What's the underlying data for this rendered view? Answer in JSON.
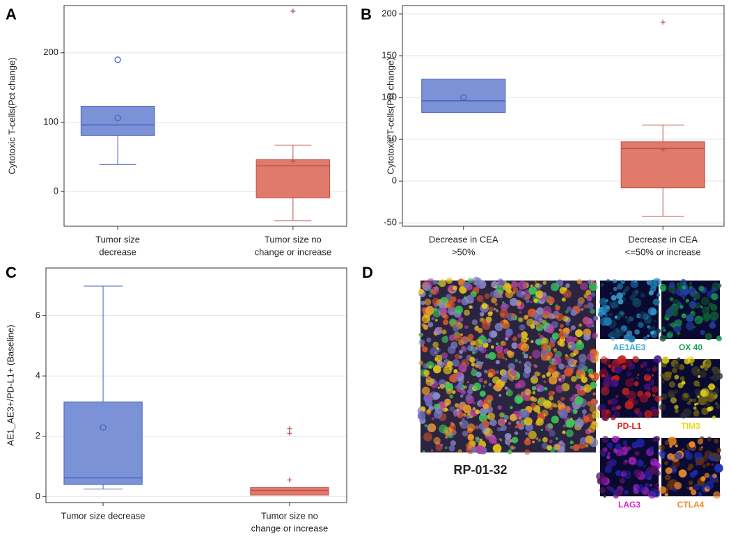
{
  "chart_data": [
    {
      "type": "box",
      "panel_label": "A",
      "ylabel": "Cytotoxic T-cells(Pct change)",
      "categories": [
        [
          "Tumor size",
          "decrease"
        ],
        [
          "Tumor size  no",
          "change or increase"
        ]
      ],
      "ylim": [
        -50,
        268
      ],
      "yticks": [
        0,
        100,
        200
      ],
      "grid": true,
      "boxes": [
        {
          "q1": 81,
          "median": 96,
          "q3": 123,
          "whisker_low": 39,
          "mean": 106,
          "outliers": [
            190
          ],
          "marker": "circle",
          "color": "#7b93d6",
          "edge": "#4a5ec4"
        },
        {
          "q1": -9,
          "median": 37,
          "q3": 46,
          "whisker_low": -42,
          "whisker_high": 67,
          "mean": 44,
          "outliers": [
            260
          ],
          "marker": "plus",
          "color": "#e07a6a",
          "edge": "#c0504d"
        }
      ]
    },
    {
      "type": "box",
      "panel_label": "B",
      "ylabel": "Cytotoxic T-cells(Pct change)",
      "categories": [
        [
          "Decrease in CEA",
          ">50%"
        ],
        [
          "Decrease in CEA",
          "<=50% or increase"
        ]
      ],
      "ylim": [
        -54,
        210
      ],
      "yticks": [
        -50,
        0,
        50,
        100,
        150,
        200
      ],
      "grid": true,
      "boxes": [
        {
          "q1": 82,
          "median": 96,
          "q3": 122,
          "mean": 100,
          "outliers": [],
          "marker": "circle",
          "color": "#7b93d6",
          "edge": "#4a5ec4"
        },
        {
          "q1": -8,
          "median": 39,
          "q3": 47,
          "whisker_low": -42,
          "whisker_high": 67,
          "mean": 38,
          "outliers": [
            190
          ],
          "marker": "plus",
          "color": "#e07a6a",
          "edge": "#c0504d"
        }
      ]
    },
    {
      "type": "box",
      "panel_label": "C",
      "ylabel": "AE1_AE3+/PD-L1+  (Baseline)",
      "categories": [
        [
          "Tumor size decrease"
        ],
        [
          "Tumor size  no",
          "change or increase"
        ]
      ],
      "ylim": [
        -0.2,
        7.58
      ],
      "yticks": [
        0,
        2,
        4,
        6
      ],
      "grid": true,
      "boxes": [
        {
          "q1": 0.4,
          "median": 0.62,
          "q3": 3.14,
          "whisker_low": 0.25,
          "whisker_high": 6.98,
          "mean": 2.29,
          "outliers": [],
          "marker": "circle",
          "color": "#7b93d6",
          "edge": "#4a5ec4"
        },
        {
          "q1": 0.05,
          "median": 0.2,
          "q3": 0.3,
          "outliers": [
            0.55,
            2.1,
            2.25
          ],
          "marker": "plus",
          "color": "#e07a6a",
          "edge": "#c0504d"
        }
      ]
    }
  ],
  "panel_d": {
    "label": "D",
    "sample": "RP-01-32",
    "channels": [
      {
        "name": "AE1AE3",
        "color": "#3aa8dc"
      },
      {
        "name": "OX 40",
        "color": "#19a04f"
      },
      {
        "name": "PD-L1",
        "color": "#e0201c"
      },
      {
        "name": "TIM3",
        "color": "#e8d81a"
      },
      {
        "name": "LAG3",
        "color": "#d428d0"
      },
      {
        "name": "CTLA4",
        "color": "#ee8a24"
      }
    ]
  }
}
